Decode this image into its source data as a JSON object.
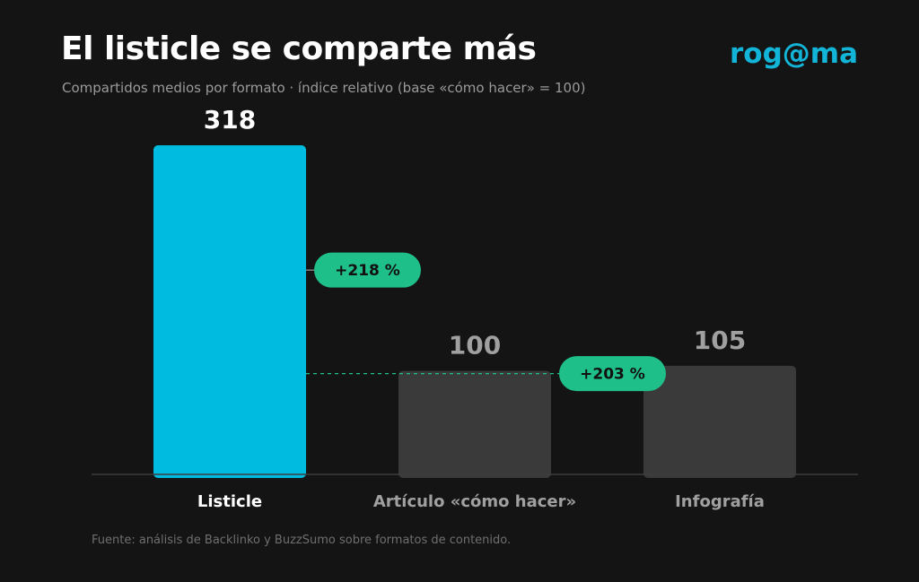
{
  "header": {
    "title": "El listicle se comparte más",
    "subtitle": "Compartidos medios por formato · índice relativo (base «cómo hacer» = 100)",
    "brand": "rog@ma"
  },
  "footer": {
    "source": "Fuente: análisis de Backlinko y BuzzSumo sobre formatos de contenido."
  },
  "colors": {
    "background": "#141414",
    "highlight_bar": "#00bbe0",
    "muted_bar": "#3a3a3a",
    "badge": "#1fbf8a",
    "brand": "#12b5d8",
    "highlight_label": "#ffffff",
    "muted_label": "#a0a0a0"
  },
  "chart_data": {
    "type": "bar",
    "title": "El listicle se comparte más",
    "subtitle": "Compartidos medios por formato · índice relativo (base «cómo hacer» = 100)",
    "categories": [
      "Listicle",
      "Artículo «cómo hacer»",
      "Infografía"
    ],
    "values": [
      318,
      100,
      105
    ],
    "highlight_index": 0,
    "ylim": [
      0,
      318
    ],
    "grid": false,
    "annotations": [
      {
        "label": "+218 %",
        "value_level": 200,
        "dashed_line": false
      },
      {
        "label": "+203 %",
        "value_level": 100,
        "dashed_line": true
      }
    ]
  }
}
